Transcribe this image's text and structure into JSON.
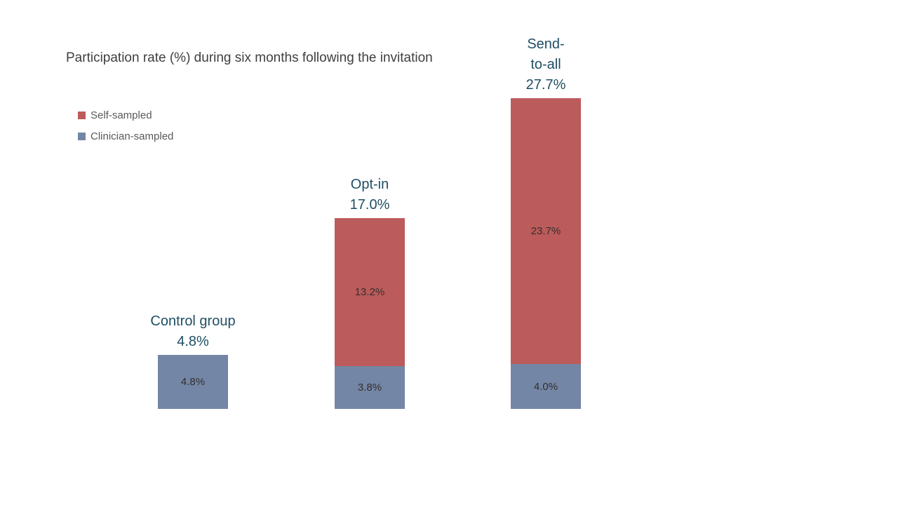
{
  "chart_data": {
    "type": "bar",
    "stacked": true,
    "title": "Participation rate (%) during six months following the invitation",
    "unit": "%",
    "ylim": [
      0,
      30
    ],
    "grid": false,
    "axes_visible": false,
    "legend_position": "top-left",
    "categories": [
      "Control group",
      "Opt-in",
      "Send-to-all"
    ],
    "series": [
      {
        "name": "Clinician-sampled",
        "color": "#7386A5",
        "values": [
          4.8,
          3.8,
          4.0
        ],
        "labels": [
          "4.8%",
          "3.8%",
          "4.0%"
        ]
      },
      {
        "name": "Self-sampled",
        "color": "#BC5B5B",
        "values": [
          0,
          13.2,
          23.7
        ],
        "labels": [
          "",
          "13.2%",
          "23.7%"
        ]
      }
    ],
    "totals": [
      "4.8%",
      "17.0%",
      "27.7%"
    ],
    "category_label_lines": [
      [
        "Control group",
        "4.8%"
      ],
      [
        "Opt-in",
        "17.0%"
      ],
      [
        "Send-",
        "to-all",
        "27.7%"
      ]
    ],
    "legend": [
      {
        "label": "Self-sampled",
        "color": "#BC5B5B"
      },
      {
        "label": "Clinician-sampled",
        "color": "#7386A5"
      }
    ]
  },
  "colors": {
    "background": "#FFFFFF",
    "title_text": "#3F3F3F",
    "legend_text": "#595959",
    "category_label_text": "#1F4E63",
    "segment_label_text": "#332F2E"
  }
}
